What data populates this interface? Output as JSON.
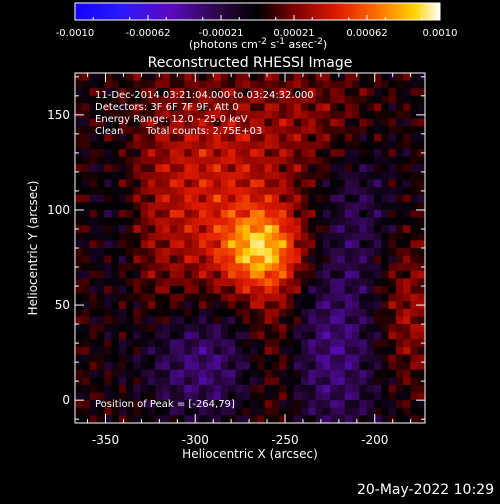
{
  "colorbar": {
    "tick_labels": [
      "-0.0010",
      "-0.00062",
      "-0.00021",
      "0.00021",
      "0.00062",
      "0.0010"
    ],
    "units_parts": [
      "(photons cm",
      "-2",
      " s",
      "-1",
      " asec",
      "-2",
      ")"
    ],
    "range": [
      -0.001,
      0.001
    ]
  },
  "annotations": {
    "time_range": "11-Dec-2014 03:21:04.000 to 03:24:32.000",
    "detectors": "Detectors: 3F 6F 7F 9F, Att 0",
    "energy": "Energy Range: 12.0 - 25.0 keV",
    "clean_label": "Clean",
    "total_counts": "Total counts: 2.75E+03",
    "peak": "Position of Peak = [-264,79]"
  },
  "footer_date": "20-May-2022 10:29",
  "chart_data": {
    "type": "heatmap",
    "title": "Reconstructed RHESSI Image",
    "xlabel": "Heliocentric X (arcsec)",
    "ylabel": "Heliocentric Y (arcsec)",
    "xlim": [
      -367,
      -172
    ],
    "ylim": [
      -12,
      172
    ],
    "x_ticks": [
      -350,
      -300,
      -250,
      -200
    ],
    "x_tick_labels": [
      "-350",
      "-300",
      "-250",
      "-200"
    ],
    "y_ticks": [
      0,
      50,
      100,
      150
    ],
    "y_tick_labels": [
      "0",
      "50",
      "100",
      "150"
    ],
    "peak_position": [
      -264,
      79
    ],
    "colormap": "blue-purple-black-red-yellow-white",
    "grid_resolution": [
      48,
      46
    ]
  }
}
